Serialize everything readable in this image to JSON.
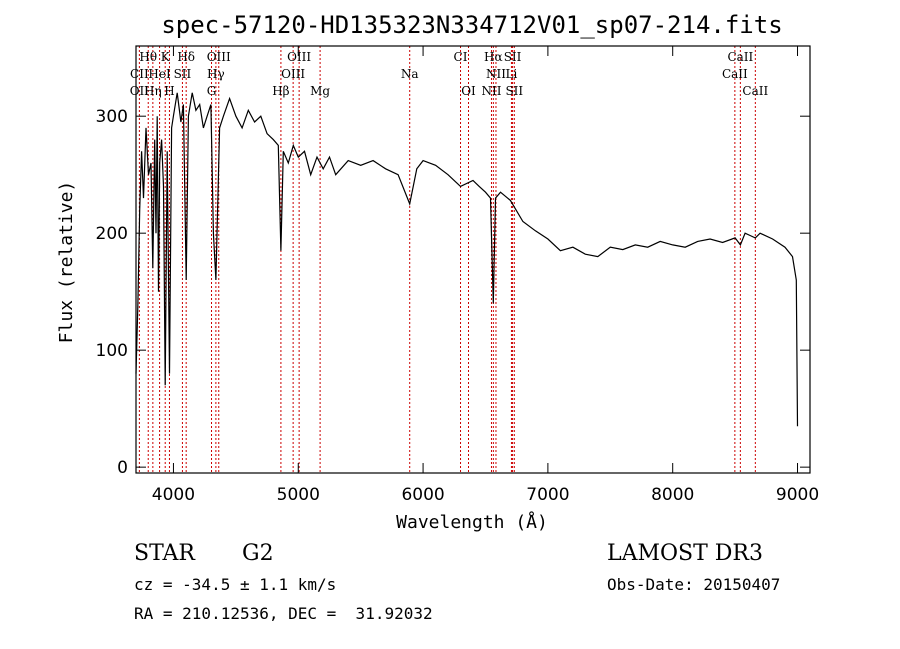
{
  "chart_data": {
    "type": "line",
    "title": "spec-57120-HD135323N334712V01_sp07-214.fits",
    "xlabel": "Wavelength (Å)",
    "ylabel": "Flux (relative)",
    "xlim": [
      3700,
      9100
    ],
    "ylim": [
      -5,
      360
    ],
    "x_ticks": [
      4000,
      5000,
      6000,
      7000,
      8000,
      9000
    ],
    "x_tick_labels": [
      "4000",
      "5000",
      "6000",
      "7000",
      "8000",
      "9000"
    ],
    "y_ticks": [
      0,
      100,
      200,
      300
    ],
    "y_tick_labels": [
      "0",
      "100",
      "200",
      "300"
    ],
    "series": [
      {
        "name": "spectrum",
        "color": "#000000",
        "x": [
          3700,
          3715,
          3730,
          3745,
          3760,
          3780,
          3800,
          3820,
          3835,
          3850,
          3860,
          3870,
          3880,
          3890,
          3905,
          3920,
          3934,
          3950,
          3968,
          3985,
          4000,
          4030,
          4060,
          4080,
          4102,
          4120,
          4150,
          4180,
          4210,
          4240,
          4270,
          4300,
          4320,
          4340,
          4370,
          4400,
          4450,
          4500,
          4550,
          4600,
          4650,
          4700,
          4750,
          4800,
          4840,
          4861,
          4880,
          4920,
          4960,
          5000,
          5050,
          5100,
          5150,
          5200,
          5250,
          5300,
          5400,
          5500,
          5600,
          5700,
          5800,
          5893,
          5950,
          6000,
          6100,
          6200,
          6300,
          6400,
          6450,
          6500,
          6540,
          6563,
          6580,
          6620,
          6700,
          6800,
          6900,
          7000,
          7100,
          7200,
          7300,
          7400,
          7500,
          7600,
          7700,
          7800,
          7900,
          8000,
          8100,
          8200,
          8300,
          8400,
          8500,
          8542,
          8580,
          8620,
          8662,
          8700,
          8800,
          8900,
          8960,
          8990,
          9000
        ],
        "y": [
          80,
          140,
          220,
          270,
          230,
          290,
          250,
          260,
          170,
          280,
          200,
          300,
          150,
          260,
          280,
          240,
          70,
          270,
          80,
          290,
          300,
          320,
          295,
          310,
          160,
          300,
          320,
          305,
          310,
          290,
          300,
          310,
          200,
          160,
          290,
          300,
          315,
          300,
          290,
          305,
          295,
          300,
          285,
          280,
          275,
          185,
          270,
          260,
          275,
          265,
          270,
          250,
          265,
          255,
          265,
          250,
          262,
          258,
          262,
          255,
          250,
          225,
          255,
          262,
          258,
          250,
          240,
          245,
          240,
          235,
          230,
          140,
          230,
          235,
          228,
          210,
          202,
          195,
          185,
          188,
          182,
          180,
          188,
          186,
          190,
          188,
          193,
          190,
          188,
          193,
          195,
          192,
          196,
          190,
          200,
          198,
          196,
          200,
          195,
          188,
          180,
          160,
          35
        ]
      }
    ],
    "line_markers": [
      {
        "label": "Hθ",
        "x": 3798,
        "row": 1
      },
      {
        "label": "K",
        "x": 3934,
        "row": 1
      },
      {
        "label": "Hδ",
        "x": 4102,
        "row": 1
      },
      {
        "label": "OIII",
        "x": 4363,
        "row": 1
      },
      {
        "label": "OIII",
        "x": 5007,
        "row": 1
      },
      {
        "label": "CI",
        "x": 6300,
        "row": 1
      },
      {
        "label": "Hα",
        "x": 6563,
        "row": 1
      },
      {
        "label": "SII",
        "x": 6717,
        "row": 1
      },
      {
        "label": "CaII",
        "x": 8542,
        "row": 1
      },
      {
        "label": "CII",
        "x": 3727,
        "row": 2
      },
      {
        "label": "HeI",
        "x": 3889,
        "row": 2
      },
      {
        "label": "SII",
        "x": 4072,
        "row": 2
      },
      {
        "label": "Hγ",
        "x": 4340,
        "row": 2
      },
      {
        "label": "OIII",
        "x": 4959,
        "row": 2
      },
      {
        "label": "Na",
        "x": 5893,
        "row": 2
      },
      {
        "label": "NII",
        "x": 6584,
        "row": 2
      },
      {
        "label": "Li",
        "x": 6708,
        "row": 2
      },
      {
        "label": "CaII",
        "x": 8498,
        "row": 2
      },
      {
        "label": "OII",
        "x": 3727,
        "row": 3
      },
      {
        "label": "Hη",
        "x": 3835,
        "row": 3
      },
      {
        "label": "H",
        "x": 3968,
        "row": 3
      },
      {
        "label": "G",
        "x": 4305,
        "row": 3
      },
      {
        "label": "Hβ",
        "x": 4861,
        "row": 3
      },
      {
        "label": "Mg",
        "x": 5175,
        "row": 3
      },
      {
        "label": "OI",
        "x": 6364,
        "row": 3
      },
      {
        "label": "NII",
        "x": 6548,
        "row": 3
      },
      {
        "label": "SII",
        "x": 6731,
        "row": 3
      },
      {
        "label": "CaII",
        "x": 8662,
        "row": 3
      }
    ],
    "marker_lines_x": [
      3727,
      3798,
      3835,
      3889,
      3934,
      3968,
      4072,
      4102,
      4305,
      4340,
      4363,
      4861,
      4959,
      5007,
      5175,
      5893,
      6300,
      6364,
      6548,
      6563,
      6584,
      6708,
      6717,
      6731,
      8498,
      8542,
      8662
    ],
    "marker_color": "#cc0000"
  },
  "info": {
    "object_type": "STAR",
    "subclass": "G2",
    "survey": "LAMOST DR3",
    "redshift": "cz = -34.5 ± 1.1 km/s",
    "obs_date": "Obs-Date: 20150407",
    "coords": "RA = 210.12536, DEC =  31.92032"
  }
}
